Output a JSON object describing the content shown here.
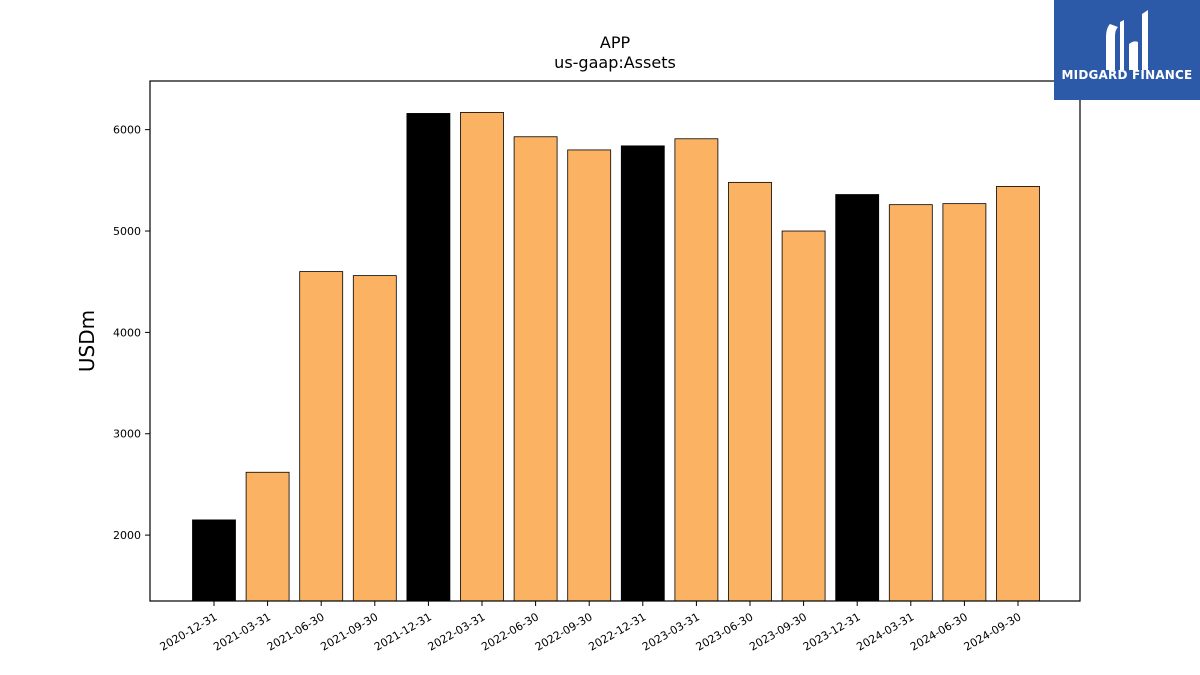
{
  "chart_data": {
    "type": "bar",
    "title": "APP",
    "subtitle": "us-gaap:Assets",
    "ylabel": "USDm",
    "xlabel": "",
    "ylim": [
      1350,
      6480
    ],
    "yticks": [
      2000,
      3000,
      4000,
      5000,
      6000
    ],
    "grid": false,
    "categories": [
      "2020-12-31",
      "2021-03-31",
      "2021-06-30",
      "2021-09-30",
      "2021-12-31",
      "2022-03-31",
      "2022-06-30",
      "2022-09-30",
      "2022-12-31",
      "2023-03-31",
      "2023-06-30",
      "2023-09-30",
      "2023-12-31",
      "2024-03-31",
      "2024-06-30",
      "2024-09-30"
    ],
    "values": [
      2150,
      2620,
      4600,
      4560,
      6160,
      6170,
      5930,
      5800,
      5840,
      5910,
      5480,
      5000,
      5360,
      5260,
      5270,
      5440
    ],
    "highlight_categories": [
      "2020-12-31",
      "2021-12-31",
      "2022-12-31",
      "2023-12-31"
    ],
    "colors": {
      "bar": "#fbb363",
      "highlight": "#000000",
      "edge": "#000000"
    }
  },
  "logo": {
    "text": "MIDGARD FINANCE",
    "bg": "#2c5aa8"
  }
}
